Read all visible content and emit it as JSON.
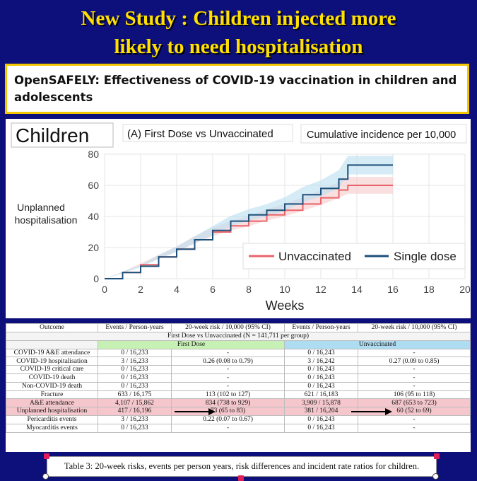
{
  "headline": {
    "line1": "New Study : Children injected more",
    "line2": "likely to need hospitalisation",
    "color": "#ffe000"
  },
  "paper": {
    "title_line1": "OpenSAFELY: Effectiveness of COVID-19 vaccination in children and",
    "title_line2": "adolescents"
  },
  "chart_data": {
    "type": "line",
    "panel_label": "Children",
    "subtitle": "(A) First Dose vs Unvaccinated",
    "measure": "Cumulative incidence per 10,000",
    "xlabel": "Weeks",
    "ylabel_line1": "Unplanned",
    "ylabel_line2": "hospitalisation",
    "xlim": [
      0,
      20
    ],
    "ylim": [
      0,
      80
    ],
    "x_ticks": [
      0,
      2,
      4,
      6,
      8,
      10,
      12,
      14,
      16,
      18,
      20
    ],
    "y_ticks": [
      0,
      20,
      40,
      60,
      80
    ],
    "grid": true,
    "legend_position": "bottom-right",
    "series": [
      {
        "name": "Unvaccinated",
        "color": "#e8666b",
        "x": [
          0,
          1,
          2,
          3,
          4,
          5,
          6,
          7,
          8,
          9,
          10,
          11,
          12,
          13,
          13.5,
          16
        ],
        "y": [
          0,
          4,
          9,
          14,
          19,
          25,
          30,
          34,
          37,
          41,
          44,
          48,
          52,
          57,
          60,
          60
        ]
      },
      {
        "name": "Single dose",
        "color": "#1c4f7a",
        "x": [
          0,
          1,
          2,
          3,
          4,
          5,
          6,
          7,
          8,
          9,
          10,
          11,
          12,
          13,
          13.5,
          16
        ],
        "y": [
          0,
          4,
          8,
          14,
          19,
          25,
          31,
          37,
          41,
          44,
          48,
          54,
          58,
          64,
          73,
          73
        ]
      }
    ]
  },
  "table": {
    "headers": [
      "Outcome",
      "Events / Person-years",
      "20-week risk / 10,000 (95% CI)",
      "Events / Person-years",
      "20-week risk / 10,000 (95% CI)"
    ],
    "group_title": "First Dose vs Unvaccinated (N = 141,711 per group)",
    "group_first": "First Dose",
    "group_unvac": "Unvaccinated",
    "rows": [
      {
        "outcome": "COVID-19 A&E attendance",
        "e1": "0 / 16,233",
        "r1": "-",
        "e2": "0 / 16,243",
        "r2": "-"
      },
      {
        "outcome": "COVID-19 hospitalisation",
        "e1": "3 / 16,233",
        "r1": "0.26 (0.08 to 0.79)",
        "e2": "3 / 16,242",
        "r2": "0.27 (0.09 to 0.85)"
      },
      {
        "outcome": "COVID-19 critical care",
        "e1": "0 / 16,233",
        "r1": "-",
        "e2": "0 / 16,243",
        "r2": "-"
      },
      {
        "outcome": "COVID-19 death",
        "e1": "0 / 16,233",
        "r1": "-",
        "e2": "0 / 16,243",
        "r2": "-"
      },
      {
        "outcome": "Non-COVID-19 death",
        "e1": "0 / 16,233",
        "r1": "-",
        "e2": "0 / 16,243",
        "r2": "-"
      },
      {
        "outcome": "Fracture",
        "e1": "633 / 16,175",
        "r1": "113 (102 to 127)",
        "e2": "621 / 16,183",
        "r2": "106 (95 to 118)"
      },
      {
        "outcome": "A&E attendance",
        "e1": "4,107 / 15,862",
        "r1": "834 (738 to 929)",
        "e2": "3,909 / 15,878",
        "r2": "687 (653 to 723)",
        "highlight": true
      },
      {
        "outcome": "Unplanned hospitalisation",
        "e1": "417 / 16,196",
        "r1": "73 (65 to 83)",
        "e2": "381 / 16,204",
        "r2": "60 (52 to 69)",
        "highlight": true,
        "arrows": true
      },
      {
        "outcome": "Pericarditis events",
        "e1": "3 / 16,233",
        "r1": "0.22 (0.07 to 0.67)",
        "e2": "0 / 16,243",
        "r2": "-"
      },
      {
        "outcome": "Myocarditis events",
        "e1": "0 / 16,233",
        "r1": "-",
        "e2": "0 / 16,243",
        "r2": "-"
      }
    ]
  },
  "caption": "Table 3: 20-week risks, events per person years, risk differences and incident rate ratios for children."
}
